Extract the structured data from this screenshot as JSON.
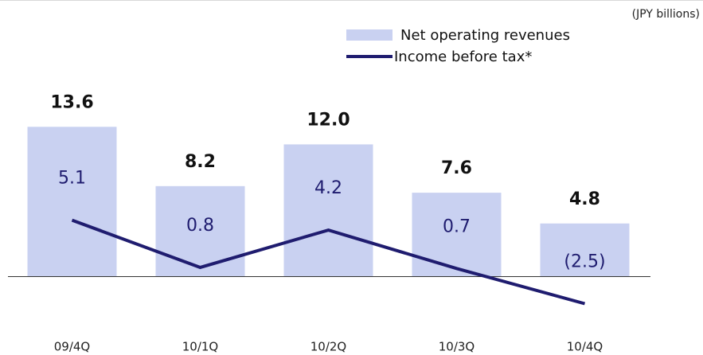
{
  "chart_data": {
    "type": "bar",
    "units": "(JPY billions)",
    "categories": [
      "09/4Q",
      "10/1Q",
      "10/2Q",
      "10/3Q",
      "10/4Q"
    ],
    "series": [
      {
        "name": "Net operating revenues",
        "type": "bar",
        "color": "#c9d1f1",
        "values": [
          13.6,
          8.2,
          12.0,
          7.6,
          4.8
        ],
        "value_labels": [
          "13.6",
          "8.2",
          "12.0",
          "7.6",
          "4.8"
        ]
      },
      {
        "name": "Income before tax*",
        "type": "line",
        "color": "#1f1c6f",
        "values": [
          5.1,
          0.8,
          4.2,
          0.7,
          -2.5
        ],
        "value_labels": [
          "5.1",
          "0.8",
          "4.2",
          "0.7",
          "(2.5)"
        ]
      }
    ]
  }
}
